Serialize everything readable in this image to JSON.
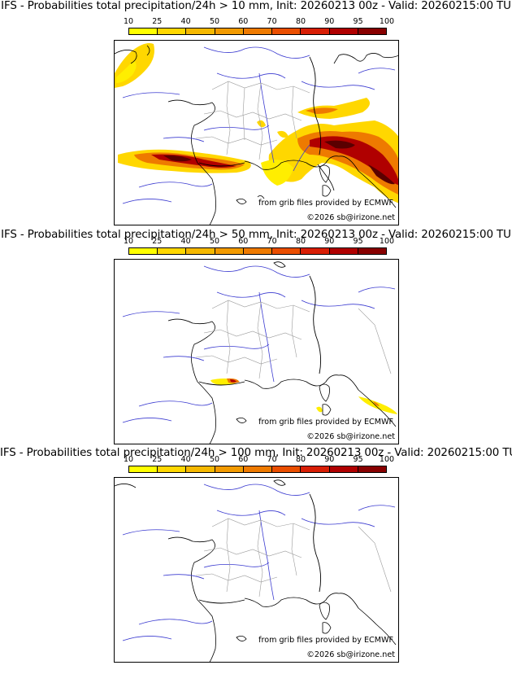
{
  "panels": [
    {
      "title": "IFS - Probabilities total precipitation/24h > 10 mm, Init: 20260213 00z - Valid: 20260215:00 TU",
      "legend_ticks": [
        "10",
        "25",
        "40",
        "50",
        "60",
        "70",
        "80",
        "90",
        "95",
        "100"
      ],
      "credit_source": "from grib files provided by ECMWF",
      "credit_copyright": "©2026 sb@irizone.net"
    },
    {
      "title": "IFS - Probabilities total precipitation/24h > 50 mm, Init: 20260213 00z - Valid: 20260215:00 TU",
      "legend_ticks": [
        "10",
        "25",
        "40",
        "50",
        "60",
        "70",
        "80",
        "90",
        "95",
        "100"
      ],
      "credit_source": "from grib files provided by ECMWF",
      "credit_copyright": "©2026 sb@irizone.net"
    },
    {
      "title": "IFS - Probabilities total precipitation/24h > 100 mm, Init: 20260213 00z - Valid: 20260215:00 TU",
      "legend_ticks": [
        "10",
        "25",
        "40",
        "50",
        "60",
        "70",
        "80",
        "90",
        "95",
        "100"
      ],
      "credit_source": "from grib files provided by ECMWF",
      "credit_copyright": "©2026 sb@irizone.net"
    }
  ],
  "colorscale": [
    "#ffff00",
    "#ffd700",
    "#f5b800",
    "#f29a00",
    "#ee7a00",
    "#ea4e00",
    "#d81e05",
    "#b00000",
    "#880000",
    "#5a0000"
  ],
  "colors": {
    "coast": "#000000",
    "rivers": "#3a3ad0",
    "borders": "#9a9a9a"
  }
}
